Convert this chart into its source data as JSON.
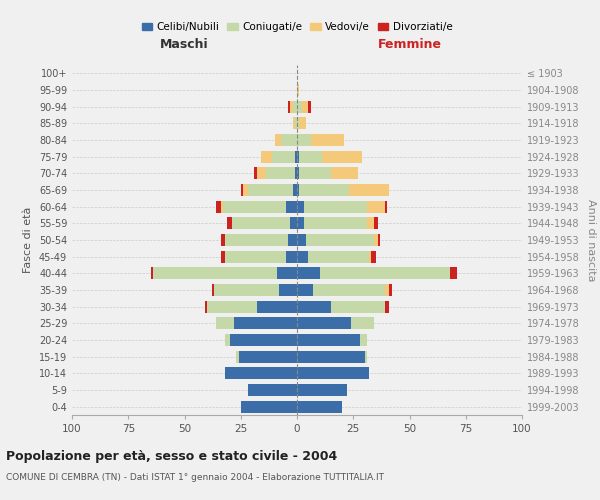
{
  "age_groups": [
    "0-4",
    "5-9",
    "10-14",
    "15-19",
    "20-24",
    "25-29",
    "30-34",
    "35-39",
    "40-44",
    "45-49",
    "50-54",
    "55-59",
    "60-64",
    "65-69",
    "70-74",
    "75-79",
    "80-84",
    "85-89",
    "90-94",
    "95-99",
    "100+"
  ],
  "birth_years": [
    "1999-2003",
    "1994-1998",
    "1989-1993",
    "1984-1988",
    "1979-1983",
    "1974-1978",
    "1969-1973",
    "1964-1968",
    "1959-1963",
    "1954-1958",
    "1949-1953",
    "1944-1948",
    "1939-1943",
    "1934-1938",
    "1929-1933",
    "1924-1928",
    "1919-1923",
    "1914-1918",
    "1909-1913",
    "1904-1908",
    "≤ 1903"
  ],
  "male": {
    "celibi": [
      25,
      22,
      32,
      26,
      30,
      28,
      18,
      8,
      9,
      5,
      4,
      3,
      5,
      2,
      1,
      1,
      0,
      0,
      0,
      0,
      0
    ],
    "coniugati": [
      0,
      0,
      0,
      1,
      2,
      8,
      22,
      29,
      55,
      27,
      28,
      26,
      28,
      20,
      13,
      10,
      7,
      1,
      2,
      0,
      0
    ],
    "vedovi": [
      0,
      0,
      0,
      0,
      0,
      0,
      0,
      0,
      0,
      0,
      0,
      0,
      1,
      2,
      4,
      5,
      3,
      1,
      1,
      0,
      0
    ],
    "divorziati": [
      0,
      0,
      0,
      0,
      0,
      0,
      1,
      1,
      1,
      2,
      2,
      2,
      2,
      1,
      1,
      0,
      0,
      0,
      1,
      0,
      0
    ]
  },
  "female": {
    "nubili": [
      20,
      22,
      32,
      30,
      28,
      24,
      15,
      7,
      10,
      5,
      4,
      3,
      3,
      1,
      1,
      1,
      0,
      0,
      0,
      0,
      0
    ],
    "coniugate": [
      0,
      0,
      0,
      1,
      3,
      10,
      24,
      32,
      58,
      27,
      30,
      28,
      28,
      22,
      14,
      10,
      6,
      1,
      2,
      0,
      0
    ],
    "vedove": [
      0,
      0,
      0,
      0,
      0,
      0,
      0,
      2,
      0,
      1,
      2,
      3,
      8,
      18,
      12,
      18,
      15,
      3,
      3,
      1,
      0
    ],
    "divorziate": [
      0,
      0,
      0,
      0,
      0,
      0,
      2,
      1,
      3,
      2,
      1,
      2,
      1,
      0,
      0,
      0,
      0,
      0,
      1,
      0,
      0
    ]
  },
  "colors": {
    "celibi": "#3b6ea8",
    "coniugati": "#c5d9a8",
    "vedovi": "#f5c97a",
    "divorziati": "#cc2222"
  },
  "xlim": 100,
  "title": "Popolazione per età, sesso e stato civile - 2004",
  "subtitle": "COMUNE DI CEMBRA (TN) - Dati ISTAT 1° gennaio 2004 - Elaborazione TUTTITALIA.IT",
  "ylabel_left": "Fasce di età",
  "ylabel_right": "Anni di nascita",
  "xlabel_maschi": "Maschi",
  "xlabel_femmine": "Femmine",
  "legend_labels": [
    "Celibi/Nubili",
    "Coniugati/e",
    "Vedovi/e",
    "Divorziati/e"
  ],
  "background_color": "#f0f0f0"
}
